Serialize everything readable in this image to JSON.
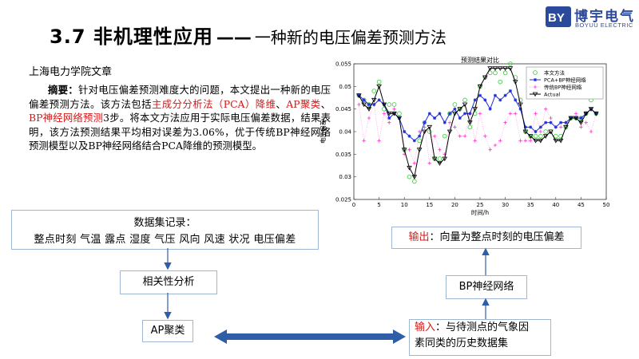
{
  "header": {
    "title_main": "3.7 非机理性应用",
    "title_dash": "——",
    "title_sub": "一种新的电压偏差预测方法",
    "logo_name": "博宇电气",
    "logo_sub": "BOYUU ELECTRIC"
  },
  "source": "上海电力学院文章",
  "abstract": {
    "lead": "摘要：",
    "t1": "针对电压偏差预测难度大的问题，本文提出一种新的电压偏差预测方法。该方法包括",
    "h1": "主成分分析法（PCA）降维",
    "s1": "、",
    "h2": "AP聚类",
    "s2": "、",
    "h3": "BP神经网络预测",
    "t2": "3步。将本文方法应用于实际电压偏差数据，结果表明，该方法预测结果平均相对误差为3.06%，优于传统BP神经网络预测模型以及BP神经网络结合PCA降维的预测模型。"
  },
  "flow": {
    "dataset_title": "数据集记录：",
    "dataset_fields": "整点时刻 气温 露点 湿度 气压 风向 风速 状况 电压偏差",
    "corr": "相关性分析",
    "ap": "AP聚类",
    "output_label": "输出",
    "output_text": "：向量为整点时刻的电压偏差",
    "bp": "BP神经网络",
    "input_label": "输入",
    "input_text1": "：与待测点的气象因",
    "input_text2": "素同类的历史数据集"
  },
  "colors": {
    "accent_red": "#d21919",
    "box_border": "#9fb7d4",
    "arrow_blue": "#2e5ea8",
    "series_proposed": "#33cc33",
    "series_pca_bp": "#1f2fd6",
    "series_bp": "#ff33cc",
    "series_actual": "#000000"
  },
  "chart_data": {
    "type": "line",
    "title": "预测结果对比",
    "xlabel": "时间/h",
    "ylabel": "电压偏差",
    "xlim": [
      0,
      50
    ],
    "ylim": [
      0.025,
      0.055
    ],
    "xticks": [
      0,
      5,
      10,
      15,
      20,
      25,
      30,
      35,
      40,
      45,
      50
    ],
    "yticks": [
      0.025,
      0.03,
      0.035,
      0.04,
      0.045,
      0.05,
      0.055
    ],
    "ytick_labels": [
      "0.025",
      "0.03",
      "0.035",
      "0.04",
      "0.045",
      "0.05",
      "0.055"
    ],
    "legend_position": "top-right",
    "x": [
      1,
      2,
      3,
      4,
      5,
      6,
      7,
      8,
      9,
      10,
      11,
      12,
      13,
      14,
      15,
      16,
      17,
      18,
      19,
      20,
      21,
      22,
      23,
      24,
      25,
      26,
      27,
      28,
      29,
      30,
      31,
      32,
      33,
      34,
      35,
      36,
      37,
      38,
      39,
      40,
      41,
      42,
      43,
      44,
      45,
      46,
      47,
      48
    ],
    "series": [
      {
        "name": "本文方法",
        "marker": "o",
        "line": false,
        "values": [
          0.048,
          0.047,
          0.046,
          0.049,
          0.051,
          0.045,
          0.046,
          0.046,
          0.044,
          0.036,
          0.03,
          0.029,
          0.038,
          0.042,
          0.04,
          0.034,
          0.034,
          0.039,
          0.044,
          0.046,
          0.045,
          0.047,
          0.041,
          0.044,
          0.05,
          0.052,
          0.053,
          0.053,
          0.051,
          0.053,
          0.055,
          0.052,
          0.047,
          0.04,
          0.039,
          0.039,
          0.039,
          0.04,
          0.04,
          0.039,
          0.039,
          0.041,
          0.043,
          0.043,
          0.043,
          0.044,
          0.047,
          0.044
        ]
      },
      {
        "name": "PCA+BP神经网络",
        "marker": "*",
        "line": true,
        "values": [
          0.048,
          0.047,
          0.046,
          0.046,
          0.047,
          0.046,
          0.043,
          0.044,
          0.043,
          0.04,
          0.039,
          0.038,
          0.039,
          0.042,
          0.044,
          0.043,
          0.044,
          0.042,
          0.044,
          0.045,
          0.043,
          0.044,
          0.044,
          0.047,
          0.048,
          0.047,
          0.045,
          0.048,
          0.047,
          0.048,
          0.049,
          0.047,
          0.045,
          0.041,
          0.041,
          0.04,
          0.041,
          0.042,
          0.042,
          0.041,
          0.042,
          0.042,
          0.043,
          0.043,
          0.043,
          0.044,
          0.045,
          0.044
        ]
      },
      {
        "name": "传统BP神经网络",
        "marker": "+",
        "line": false,
        "values": [
          0.046,
          0.038,
          0.043,
          0.046,
          0.038,
          0.044,
          0.042,
          0.045,
          0.043,
          0.035,
          0.036,
          0.033,
          0.04,
          0.041,
          0.033,
          0.039,
          0.036,
          0.035,
          0.042,
          0.041,
          0.039,
          0.039,
          0.044,
          0.038,
          0.044,
          0.039,
          0.036,
          0.037,
          0.038,
          0.042,
          0.044,
          0.044,
          0.038,
          0.038,
          0.038,
          0.044,
          0.04,
          0.045,
          0.043,
          0.041,
          0.041,
          0.042,
          0.043,
          0.044,
          0.041,
          0.042,
          0.04,
          0.044
        ]
      },
      {
        "name": "Actual",
        "marker": "v",
        "line": true,
        "values": [
          0.048,
          0.046,
          0.045,
          0.047,
          0.05,
          0.046,
          0.044,
          0.044,
          0.043,
          0.036,
          0.032,
          0.03,
          0.036,
          0.04,
          0.041,
          0.034,
          0.033,
          0.034,
          0.04,
          0.044,
          0.045,
          0.046,
          0.042,
          0.045,
          0.05,
          0.052,
          0.054,
          0.054,
          0.054,
          0.054,
          0.054,
          0.051,
          0.046,
          0.04,
          0.039,
          0.038,
          0.038,
          0.039,
          0.04,
          0.038,
          0.038,
          0.041,
          0.043,
          0.043,
          0.042,
          0.044,
          0.045,
          0.044
        ]
      }
    ]
  }
}
